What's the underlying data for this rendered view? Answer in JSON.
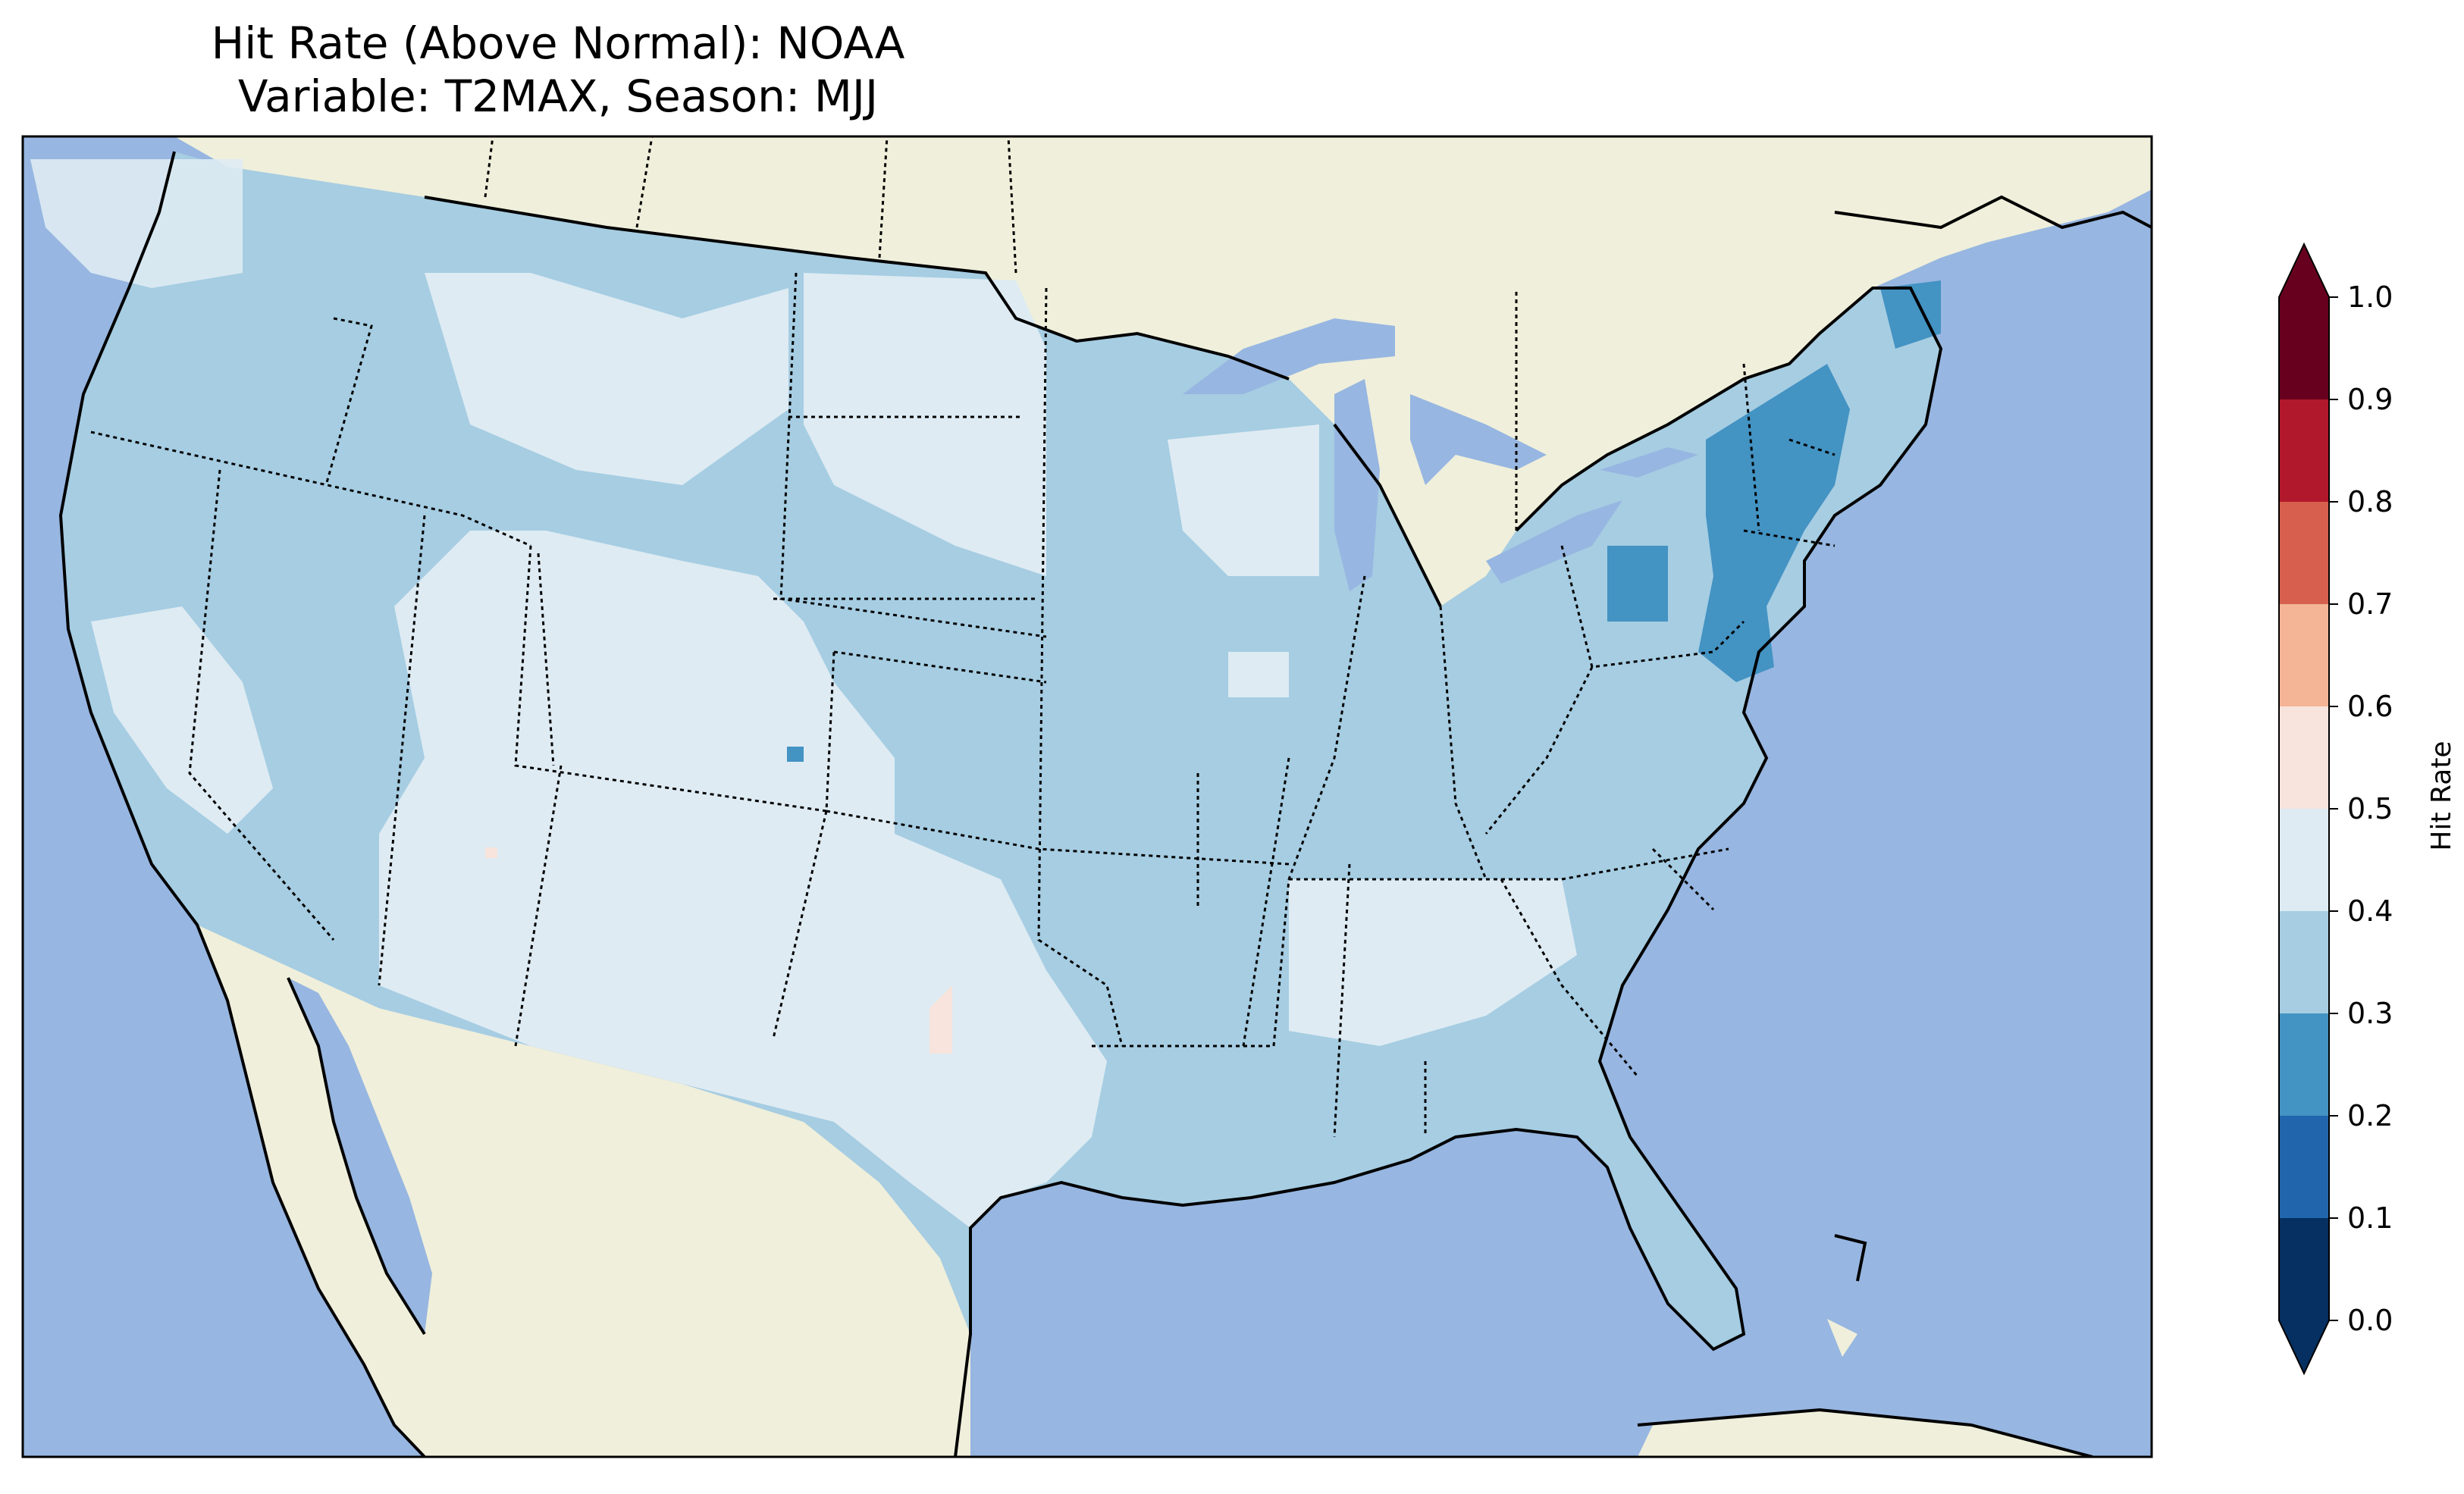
{
  "title": {
    "line1": "Hit Rate (Above Normal): NOAA",
    "line2": "Variable: T2MAX, Season: MJJ"
  },
  "colors": {
    "ocean": "#97b6e1",
    "land": "#efefdb",
    "coastline": "#000000",
    "border": "#000000"
  },
  "colorbar": {
    "label": "Hit Rate",
    "ticks": [
      "0.0",
      "0.1",
      "0.2",
      "0.3",
      "0.4",
      "0.5",
      "0.6",
      "0.7",
      "0.8",
      "0.9",
      "1.0"
    ],
    "bins": [
      {
        "from": 0.0,
        "to": 0.1,
        "color": "#053061"
      },
      {
        "from": 0.1,
        "to": 0.2,
        "color": "#2166ac"
      },
      {
        "from": 0.2,
        "to": 0.3,
        "color": "#4393c3"
      },
      {
        "from": 0.3,
        "to": 0.4,
        "color": "#a6cde2"
      },
      {
        "from": 0.4,
        "to": 0.5,
        "color": "#deebf3"
      },
      {
        "from": 0.5,
        "to": 0.6,
        "color": "#f8e4dc"
      },
      {
        "from": 0.6,
        "to": 0.7,
        "color": "#f4b596"
      },
      {
        "from": 0.7,
        "to": 0.8,
        "color": "#d6604d"
      },
      {
        "from": 0.8,
        "to": 0.9,
        "color": "#b2182b"
      },
      {
        "from": 0.9,
        "to": 1.0,
        "color": "#67001f"
      }
    ],
    "extend": "both"
  },
  "map": {
    "region": "Contiguous United States",
    "dominant_category": "0.3-0.4",
    "notes_visible": [
      "0.4-0.5 over Southwest, Texas, northern plains, Southeast interior",
      "0.2-0.3 over Mid-Atlantic and New England coast"
    ]
  }
}
